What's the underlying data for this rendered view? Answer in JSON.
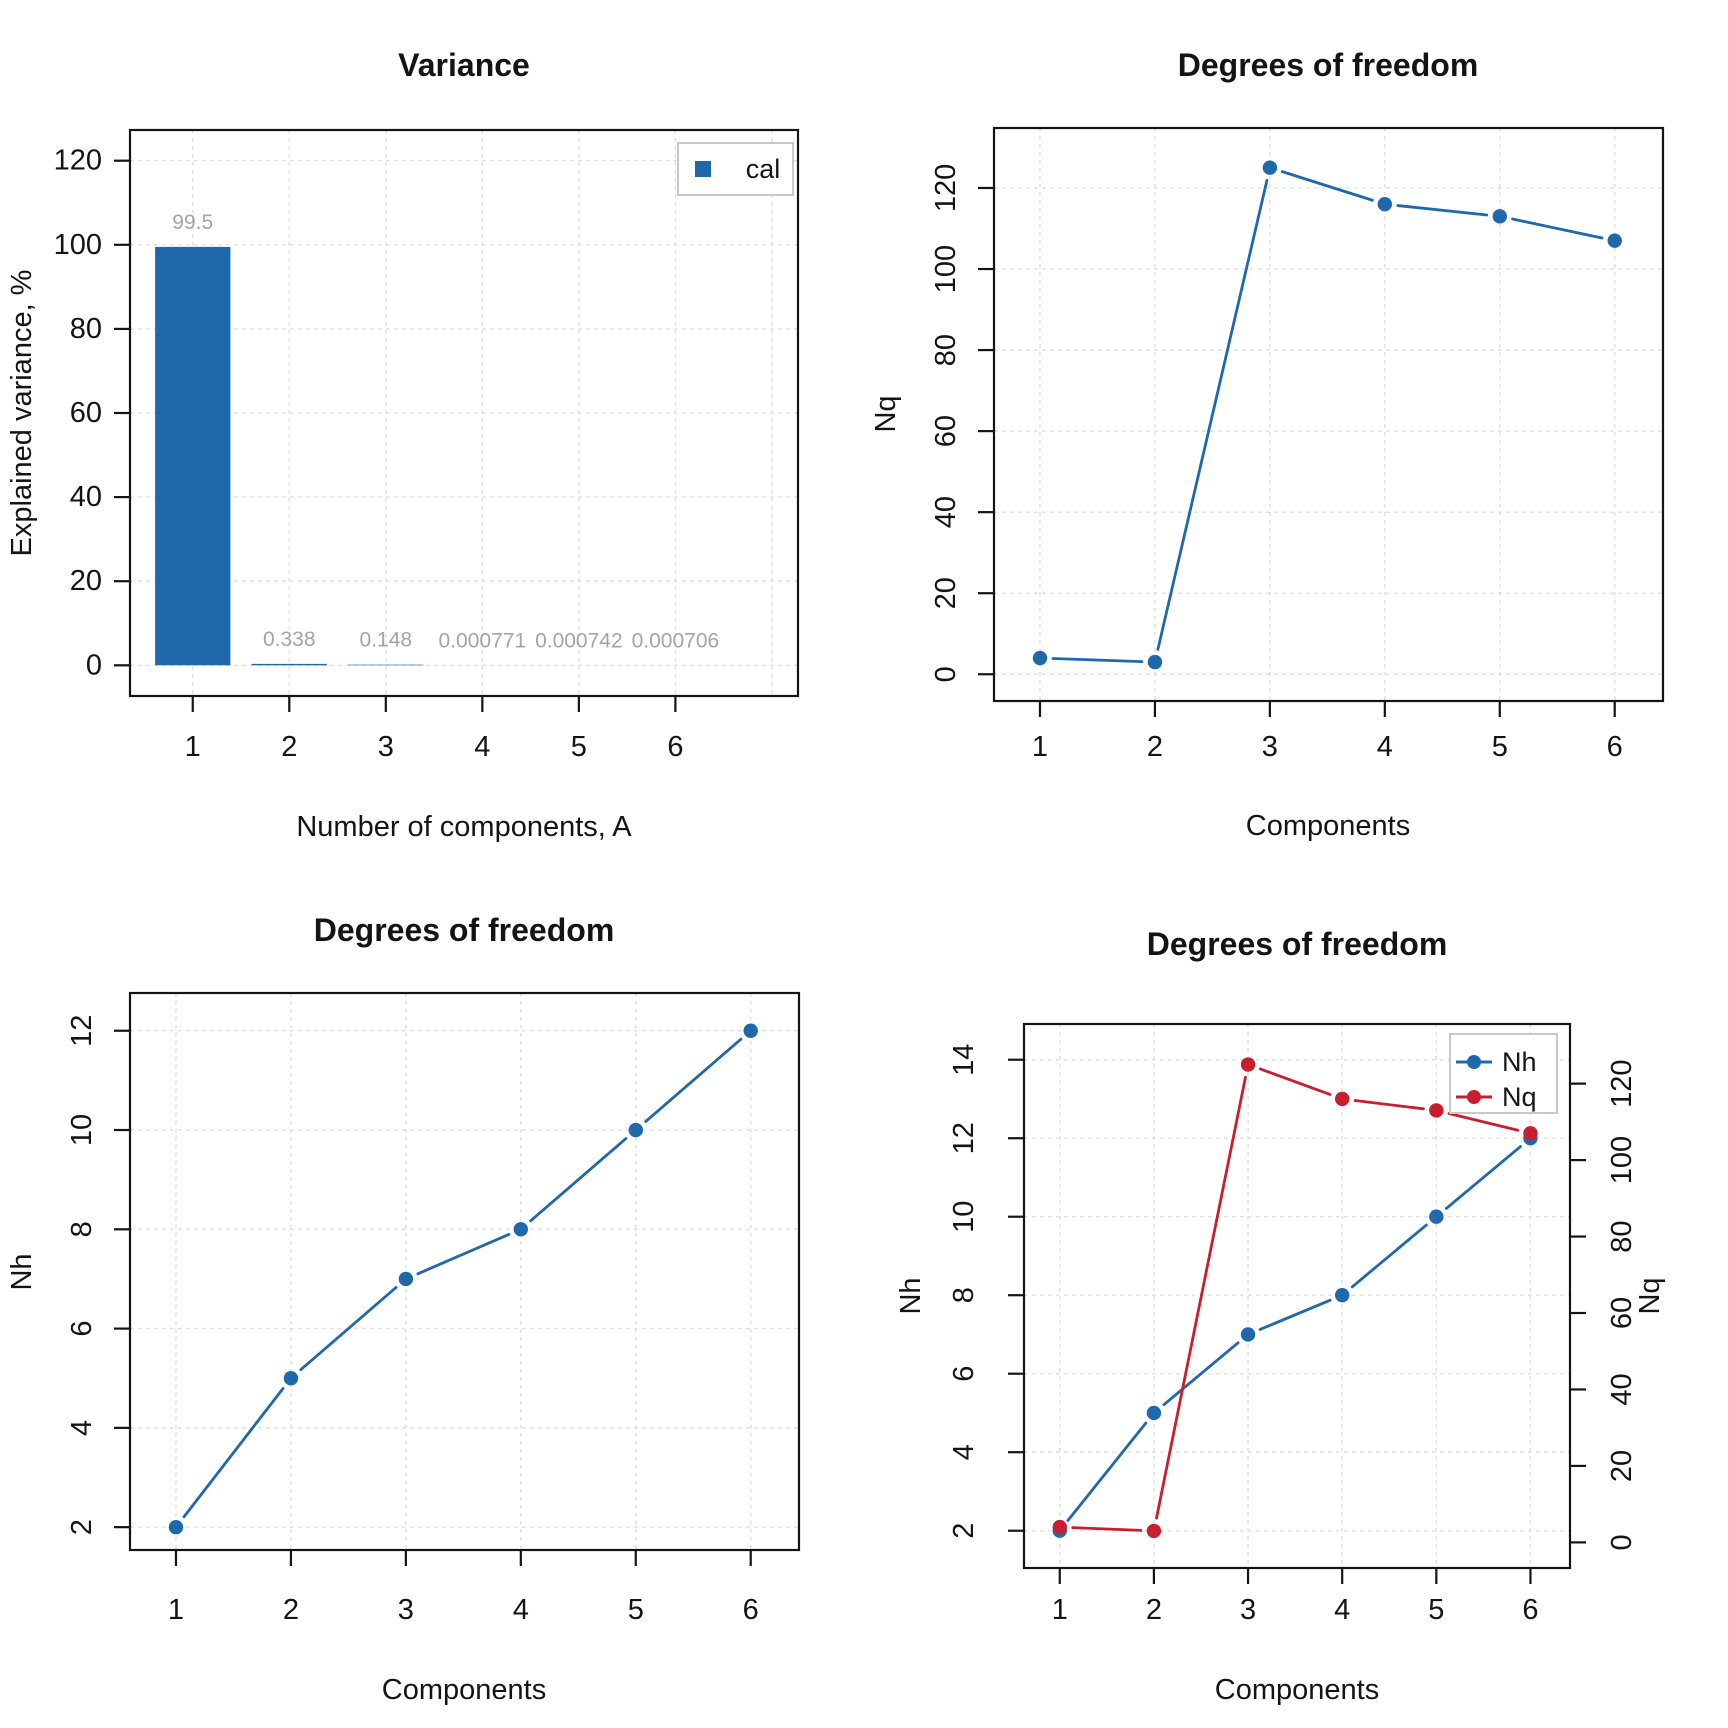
{
  "figure": {
    "background": "#FFFFFF",
    "description": "2x2 grid of PLS model plots"
  },
  "colors": {
    "series_blue": "#2068AC",
    "series_red": "#C81E2D",
    "value_label_gray": "#A4A4A4",
    "grid": "#DEDEDE",
    "frame": "#141414",
    "legend_border": "#C8C8C8",
    "legend_fill": "#FFFFFF"
  },
  "chart_data": [
    {
      "id": "variance",
      "type": "bar",
      "title": "Variance",
      "xlabel": "Number of components, A",
      "ylabel": "Explained variance, %",
      "categories": [
        1,
        2,
        3,
        4,
        5,
        6
      ],
      "values": [
        99.5,
        0.338,
        0.148,
        0.000771,
        0.000742,
        0.000706
      ],
      "value_labels": [
        "99.5",
        "0.338",
        "0.148",
        "0.000771",
        "0.000742",
        "0.000706"
      ],
      "bar_color_key": "series_blue",
      "bar_width": 0.78,
      "xticks": [
        1,
        2,
        3,
        4,
        5,
        6
      ],
      "grid_xticks": [
        1,
        2,
        3,
        4,
        5,
        6,
        7
      ],
      "yticks": [
        0,
        20,
        40,
        60,
        80,
        100,
        120
      ],
      "xlim": [
        0.35,
        7.27
      ],
      "ylim": [
        -7.3,
        127.3
      ],
      "grid": true,
      "y_tick_style": "horizontal",
      "legend": {
        "position": "top-right",
        "entries": [
          {
            "label": "cal",
            "marker": "square",
            "color_key": "series_blue"
          }
        ]
      }
    },
    {
      "id": "dof_nq",
      "type": "line",
      "title": "Degrees of freedom",
      "xlabel": "Components",
      "ylabel": "Nq",
      "x": [
        1,
        2,
        3,
        4,
        5,
        6
      ],
      "series": [
        {
          "name": "Nq",
          "values": [
            4,
            3,
            125,
            116,
            113,
            107
          ],
          "color_key": "series_blue",
          "axis": "left"
        }
      ],
      "xticks": [
        1,
        2,
        3,
        4,
        5,
        6
      ],
      "grid_xticks": [
        1,
        2,
        3,
        4,
        5,
        6
      ],
      "yticks": [
        0,
        20,
        40,
        60,
        80,
        100,
        120
      ],
      "xlim": [
        0.6,
        6.42
      ],
      "ylim": [
        -6.6,
        134.8
      ],
      "grid": true,
      "y_tick_style": "rotated"
    },
    {
      "id": "dof_nh",
      "type": "line",
      "title": "Degrees of freedom",
      "xlabel": "Components",
      "ylabel": "Nh",
      "x": [
        1,
        2,
        3,
        4,
        5,
        6
      ],
      "series": [
        {
          "name": "Nh",
          "values": [
            2,
            5,
            7,
            8,
            10,
            12
          ],
          "color_key": "series_blue",
          "axis": "left"
        }
      ],
      "xticks": [
        1,
        2,
        3,
        4,
        5,
        6
      ],
      "grid_xticks": [
        1,
        2,
        3,
        4,
        5,
        6
      ],
      "yticks": [
        2,
        4,
        6,
        8,
        10,
        12
      ],
      "xlim": [
        0.6,
        6.42
      ],
      "ylim": [
        1.54,
        12.76
      ],
      "grid": true,
      "y_tick_style": "rotated"
    },
    {
      "id": "dof_dual",
      "type": "line",
      "title": "Degrees of freedom",
      "xlabel": "Components",
      "ylabel": "Nh",
      "ylabel_right": "Nq",
      "x": [
        1,
        2,
        3,
        4,
        5,
        6
      ],
      "series": [
        {
          "name": "Nh",
          "values": [
            2,
            5,
            7,
            8,
            10,
            12
          ],
          "color_key": "series_blue",
          "axis": "left"
        },
        {
          "name": "Nq",
          "values": [
            4,
            3,
            125,
            116,
            113,
            107
          ],
          "color_key": "series_red",
          "axis": "right"
        }
      ],
      "xticks": [
        1,
        2,
        3,
        4,
        5,
        6
      ],
      "grid_xticks": [
        1,
        2,
        3,
        4,
        5,
        6
      ],
      "yticks": [
        2,
        4,
        6,
        8,
        10,
        12,
        14
      ],
      "yticks_right": [
        0,
        20,
        40,
        60,
        80,
        100,
        120
      ],
      "xlim": [
        0.62,
        6.42
      ],
      "ylim": [
        1.05,
        14.91
      ],
      "ylim_right": [
        -6.7,
        135.6
      ],
      "grid": true,
      "y_tick_style": "rotated",
      "legend": {
        "position": "top-right",
        "entries": [
          {
            "label": "Nh",
            "marker": "line-dot",
            "color_key": "series_blue"
          },
          {
            "label": "Nq",
            "marker": "line-dot",
            "color_key": "series_red"
          }
        ]
      }
    }
  ]
}
